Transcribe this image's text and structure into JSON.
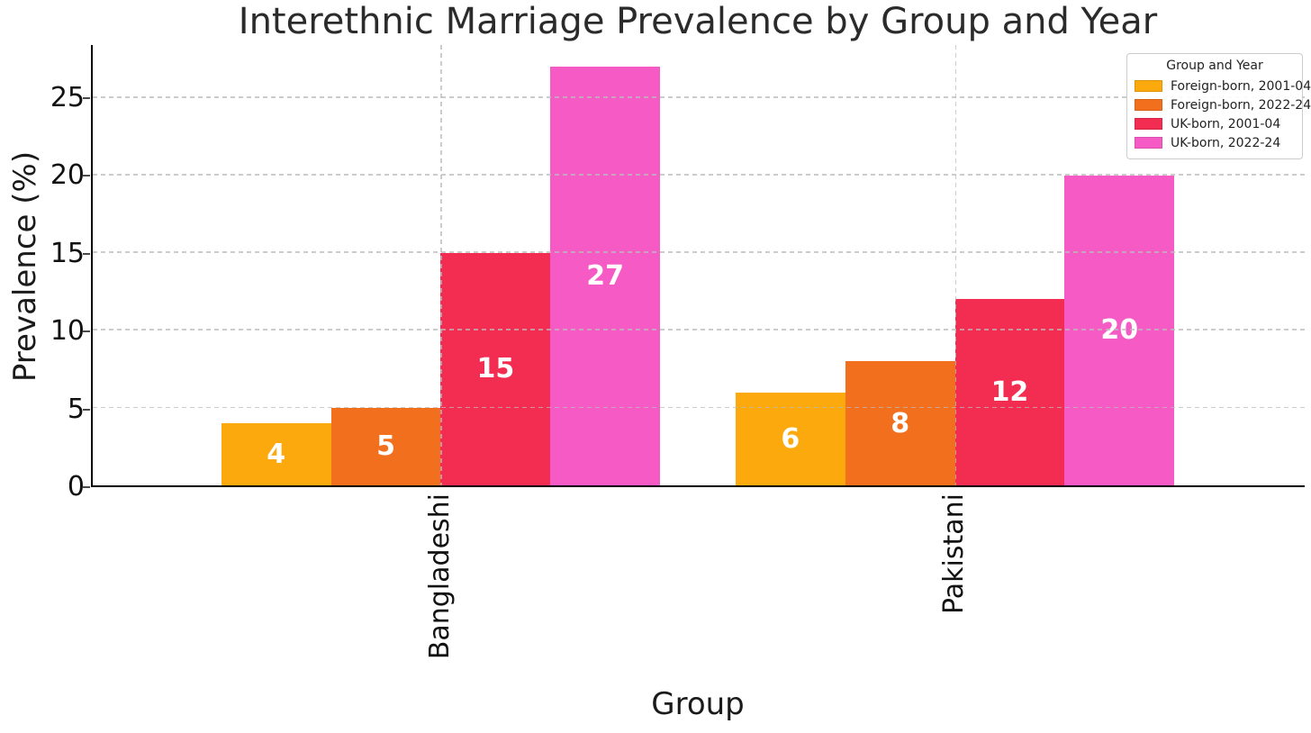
{
  "chart_data": {
    "type": "bar",
    "title": "Interethnic Marriage Prevalence by Group and Year",
    "xlabel": "Group",
    "ylabel": "Prevalence (%)",
    "categories": [
      "Bangladeshi",
      "Pakistani"
    ],
    "series": [
      {
        "name": "Foreign-born, 2001-04",
        "color": "#FCA90E",
        "values": [
          4,
          6
        ]
      },
      {
        "name": "Foreign-born, 2022-24",
        "color": "#F2701D",
        "values": [
          5,
          8
        ]
      },
      {
        "name": "UK-born, 2001-04",
        "color": "#F32C52",
        "values": [
          15,
          12
        ]
      },
      {
        "name": "UK-born, 2022-24",
        "color": "#F65AC5",
        "values": [
          27,
          20
        ]
      }
    ],
    "bar_value_labels": true,
    "bar_value_label_color": "#ffffff",
    "legend_title": "Group and Year",
    "legend_position": "upper right",
    "ylim": [
      0,
      28.4
    ],
    "yticks": [
      0,
      5,
      10,
      15,
      20,
      25
    ],
    "grid": true,
    "grid_style": "dashed"
  }
}
